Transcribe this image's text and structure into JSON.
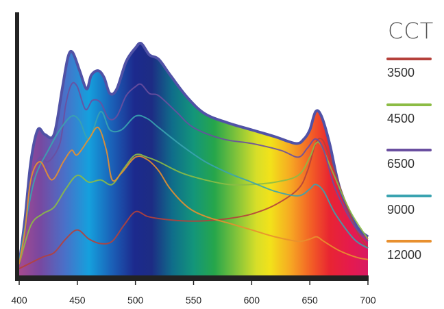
{
  "chart_data": {
    "type": "line",
    "xlabel": "",
    "ylabel": "",
    "xlim": [
      400,
      700
    ],
    "ylim": [
      0,
      1
    ],
    "x_ticks": [
      400,
      450,
      500,
      550,
      600,
      650,
      700
    ],
    "legend_title": "CCT",
    "legend_position": "right",
    "grid": false,
    "background": "visible spectrum gradient (violet to red)",
    "series": [
      {
        "name": "3500",
        "color": "#b5413b",
        "points": [
          [
            400,
            0.03
          ],
          [
            420,
            0.08
          ],
          [
            430,
            0.1
          ],
          [
            440,
            0.16
          ],
          [
            450,
            0.2
          ],
          [
            460,
            0.16
          ],
          [
            470,
            0.14
          ],
          [
            480,
            0.15
          ],
          [
            490,
            0.22
          ],
          [
            500,
            0.28
          ],
          [
            510,
            0.26
          ],
          [
            520,
            0.25
          ],
          [
            540,
            0.24
          ],
          [
            560,
            0.24
          ],
          [
            580,
            0.25
          ],
          [
            600,
            0.27
          ],
          [
            620,
            0.31
          ],
          [
            640,
            0.38
          ],
          [
            648,
            0.46
          ],
          [
            655,
            0.58
          ],
          [
            660,
            0.6
          ],
          [
            665,
            0.55
          ],
          [
            675,
            0.4
          ],
          [
            690,
            0.2
          ],
          [
            700,
            0.12
          ]
        ]
      },
      {
        "name": "4500",
        "color": "#8cbc45",
        "points": [
          [
            400,
            0.05
          ],
          [
            410,
            0.22
          ],
          [
            420,
            0.27
          ],
          [
            430,
            0.3
          ],
          [
            440,
            0.38
          ],
          [
            450,
            0.44
          ],
          [
            460,
            0.41
          ],
          [
            470,
            0.42
          ],
          [
            480,
            0.4
          ],
          [
            490,
            0.47
          ],
          [
            500,
            0.53
          ],
          [
            510,
            0.52
          ],
          [
            520,
            0.5
          ],
          [
            540,
            0.45
          ],
          [
            560,
            0.42
          ],
          [
            580,
            0.4
          ],
          [
            600,
            0.4
          ],
          [
            620,
            0.41
          ],
          [
            640,
            0.44
          ],
          [
            650,
            0.52
          ],
          [
            655,
            0.58
          ],
          [
            660,
            0.57
          ],
          [
            670,
            0.45
          ],
          [
            685,
            0.28
          ],
          [
            700,
            0.16
          ]
        ]
      },
      {
        "name": "6500",
        "color": "#6a4fa0",
        "points": [
          [
            400,
            0.05
          ],
          [
            407,
            0.25
          ],
          [
            412,
            0.45
          ],
          [
            418,
            0.52
          ],
          [
            425,
            0.5
          ],
          [
            435,
            0.58
          ],
          [
            440,
            0.75
          ],
          [
            445,
            0.84
          ],
          [
            450,
            0.83
          ],
          [
            457,
            0.73
          ],
          [
            463,
            0.77
          ],
          [
            470,
            0.76
          ],
          [
            477,
            0.69
          ],
          [
            484,
            0.7
          ],
          [
            492,
            0.79
          ],
          [
            500,
            0.83
          ],
          [
            505,
            0.84
          ],
          [
            512,
            0.8
          ],
          [
            520,
            0.79
          ],
          [
            535,
            0.72
          ],
          [
            550,
            0.65
          ],
          [
            575,
            0.6
          ],
          [
            600,
            0.58
          ],
          [
            625,
            0.55
          ],
          [
            640,
            0.52
          ],
          [
            648,
            0.56
          ],
          [
            655,
            0.6
          ],
          [
            662,
            0.55
          ],
          [
            672,
            0.38
          ],
          [
            688,
            0.22
          ],
          [
            700,
            0.15
          ]
        ]
      },
      {
        "name": "9000",
        "color": "#3aa3b0",
        "points": [
          [
            400,
            0.06
          ],
          [
            408,
            0.3
          ],
          [
            415,
            0.45
          ],
          [
            425,
            0.55
          ],
          [
            435,
            0.64
          ],
          [
            445,
            0.7
          ],
          [
            452,
            0.68
          ],
          [
            460,
            0.6
          ],
          [
            470,
            0.72
          ],
          [
            478,
            0.64
          ],
          [
            488,
            0.64
          ],
          [
            500,
            0.7
          ],
          [
            510,
            0.69
          ],
          [
            520,
            0.65
          ],
          [
            540,
            0.57
          ],
          [
            560,
            0.5
          ],
          [
            580,
            0.45
          ],
          [
            600,
            0.41
          ],
          [
            620,
            0.37
          ],
          [
            640,
            0.35
          ],
          [
            650,
            0.38
          ],
          [
            655,
            0.4
          ],
          [
            662,
            0.37
          ],
          [
            672,
            0.27
          ],
          [
            688,
            0.16
          ],
          [
            700,
            0.12
          ]
        ]
      },
      {
        "name": "12000",
        "color": "#e8902f",
        "points": [
          [
            400,
            0.05
          ],
          [
            405,
            0.2
          ],
          [
            410,
            0.42
          ],
          [
            418,
            0.5
          ],
          [
            428,
            0.42
          ],
          [
            438,
            0.5
          ],
          [
            445,
            0.55
          ],
          [
            450,
            0.53
          ],
          [
            460,
            0.6
          ],
          [
            468,
            0.65
          ],
          [
            475,
            0.55
          ],
          [
            480,
            0.42
          ],
          [
            488,
            0.45
          ],
          [
            500,
            0.52
          ],
          [
            510,
            0.51
          ],
          [
            520,
            0.46
          ],
          [
            530,
            0.38
          ],
          [
            545,
            0.3
          ],
          [
            560,
            0.26
          ],
          [
            580,
            0.23
          ],
          [
            600,
            0.2
          ],
          [
            620,
            0.17
          ],
          [
            640,
            0.15
          ],
          [
            650,
            0.16
          ],
          [
            656,
            0.17
          ],
          [
            662,
            0.15
          ],
          [
            675,
            0.11
          ],
          [
            690,
            0.08
          ],
          [
            700,
            0.07
          ]
        ]
      }
    ],
    "envelope": {
      "color": "#5052a6",
      "points": [
        [
          400,
          0.05
        ],
        [
          405,
          0.25
        ],
        [
          410,
          0.5
        ],
        [
          416,
          0.64
        ],
        [
          422,
          0.62
        ],
        [
          430,
          0.62
        ],
        [
          437,
          0.82
        ],
        [
          442,
          0.96
        ],
        [
          446,
          0.98
        ],
        [
          452,
          0.9
        ],
        [
          458,
          0.82
        ],
        [
          462,
          0.88
        ],
        [
          468,
          0.9
        ],
        [
          473,
          0.87
        ],
        [
          478,
          0.8
        ],
        [
          484,
          0.82
        ],
        [
          492,
          0.94
        ],
        [
          500,
          1.0
        ],
        [
          505,
          1.02
        ],
        [
          512,
          0.97
        ],
        [
          520,
          0.95
        ],
        [
          530,
          0.88
        ],
        [
          545,
          0.78
        ],
        [
          560,
          0.71
        ],
        [
          580,
          0.67
        ],
        [
          600,
          0.64
        ],
        [
          620,
          0.61
        ],
        [
          638,
          0.58
        ],
        [
          645,
          0.6
        ],
        [
          650,
          0.64
        ],
        [
          655,
          0.72
        ],
        [
          660,
          0.7
        ],
        [
          667,
          0.58
        ],
        [
          676,
          0.38
        ],
        [
          690,
          0.22
        ],
        [
          700,
          0.17
        ]
      ]
    }
  }
}
